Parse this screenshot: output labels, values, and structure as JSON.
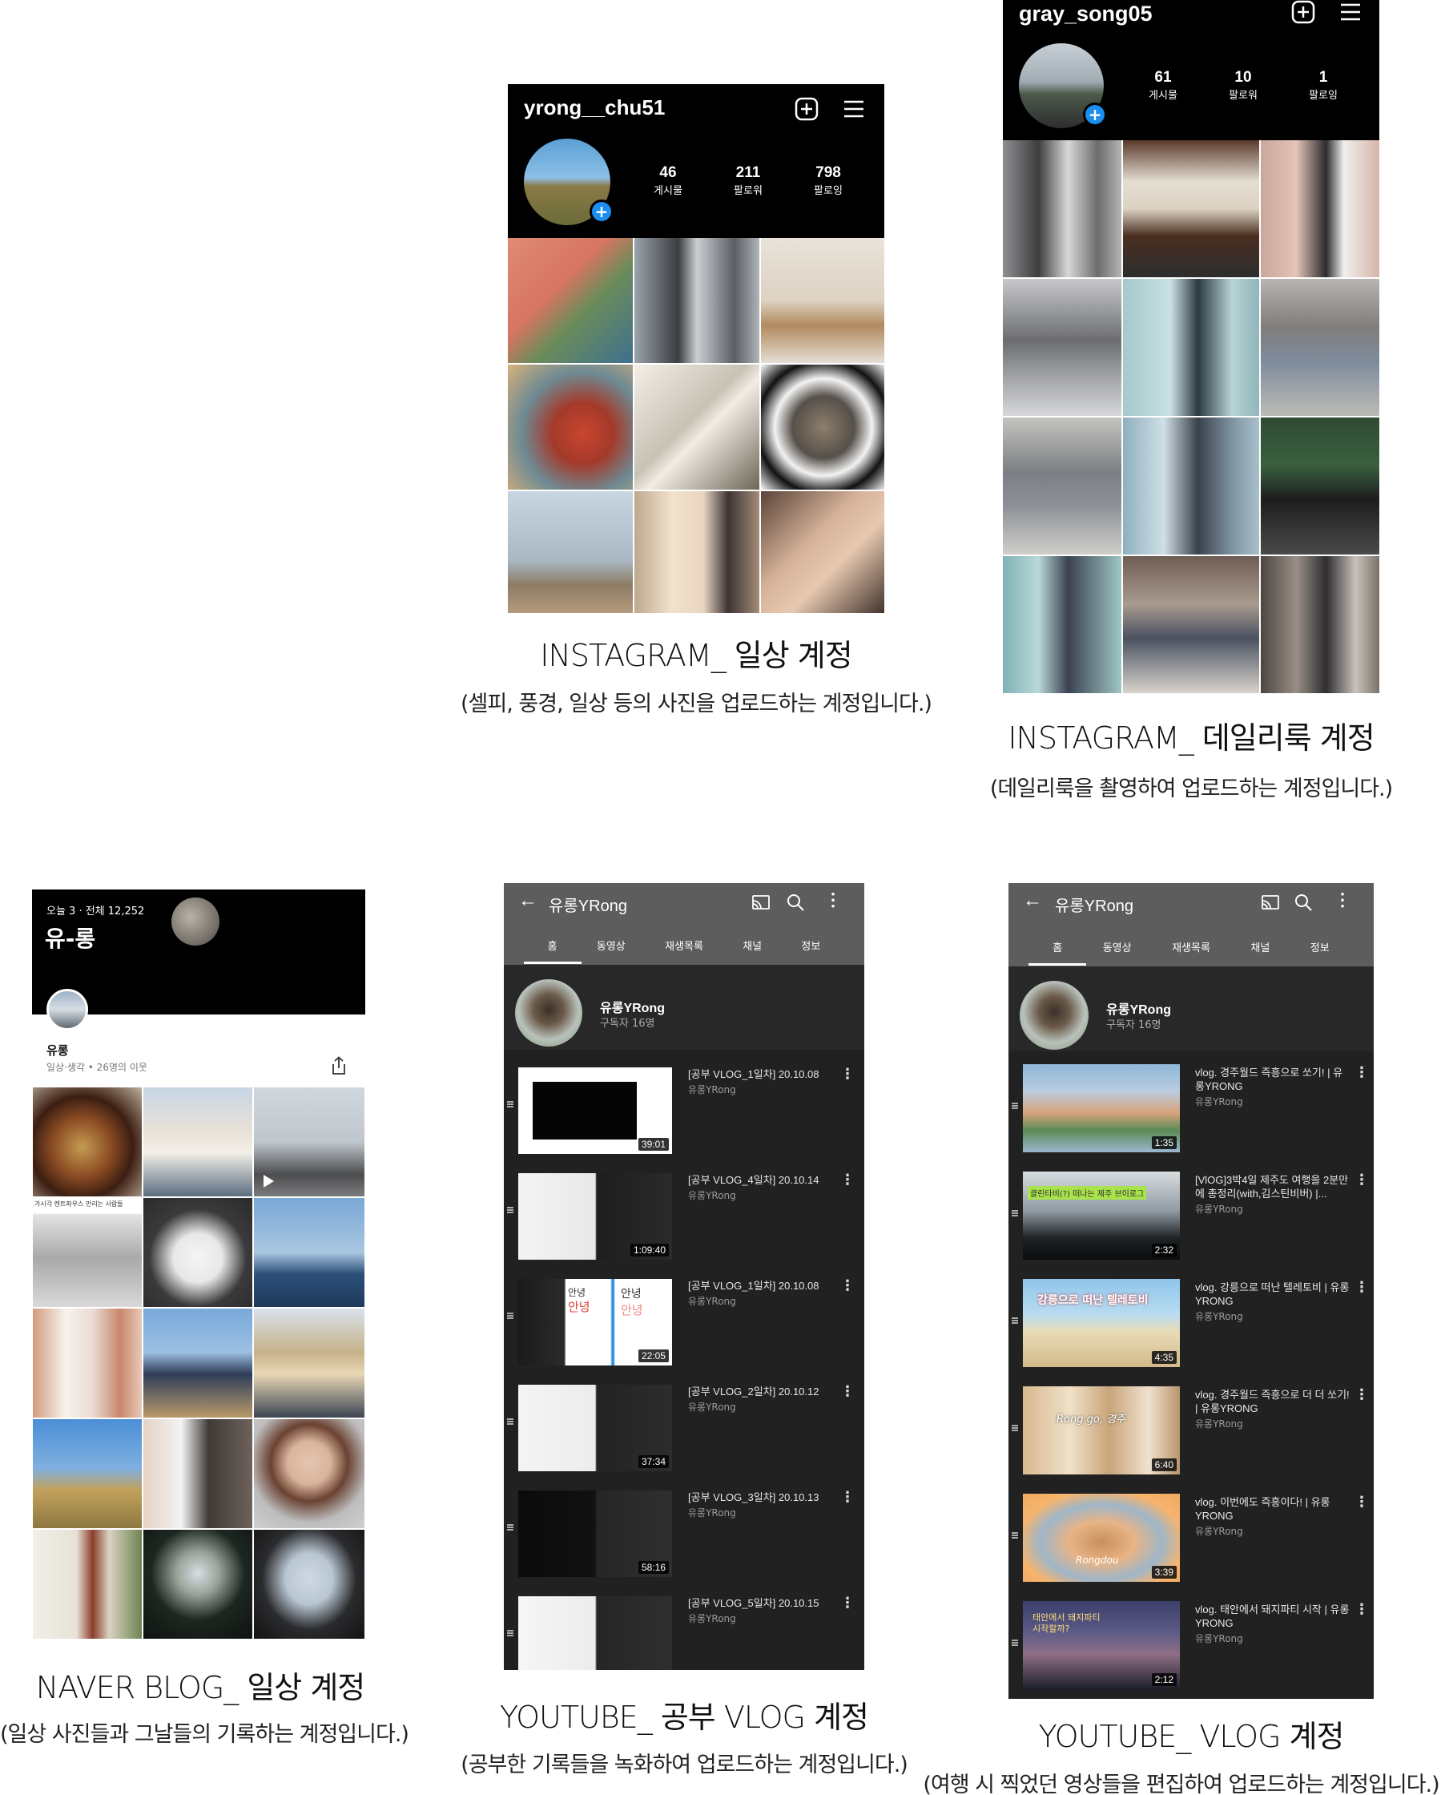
{
  "ig_daily": {
    "username": "yrong__chu51",
    "stats": [
      {
        "num": "46",
        "label": "게시물"
      },
      {
        "num": "211",
        "label": "팔로워"
      },
      {
        "num": "798",
        "label": "팔로잉"
      }
    ],
    "caption_title": "INSTAGRAM_ 일상 계정",
    "caption_sub": "(셀피, 풍경, 일상 등의 사진을 업로드하는 계정입니다.)"
  },
  "ig_look": {
    "username": "gray_song05",
    "stats": [
      {
        "num": "61",
        "label": "게시물"
      },
      {
        "num": "10",
        "label": "팔로워"
      },
      {
        "num": "1",
        "label": "팔로잉"
      }
    ],
    "caption_title": "INSTAGRAM_ 데일리룩 계정",
    "caption_sub": "(데일리룩을 촬영하여 업로드하는 계정입니다.)"
  },
  "naver": {
    "visitors": "오늘 3 · 전체 12,252",
    "blog_title": "유-롱",
    "nickname": "유롱",
    "meta": "일상·생각 • 26명의 이웃",
    "tile_caption": "가시각 렌트파우스 만리는 사람들",
    "caption_title": "NAVER BLOG_ 일상 계정",
    "caption_sub": "(일상 사진들과 그날들의 기록하는 계정입니다.)"
  },
  "yt_study": {
    "channel_title": "유롱YRong",
    "tabs": [
      "홈",
      "동영상",
      "재생목록",
      "채널",
      "정보"
    ],
    "channel_name": "유롱YRong",
    "subscribers": "구독자 16명",
    "videos": [
      {
        "title": "[공부 VLOG_1일차] 20.10.08",
        "channel": "유롱YRong",
        "duration": "39:01"
      },
      {
        "title": "[공부 VLOG_4일차] 20.10.14",
        "channel": "유롱YRong",
        "duration": "1:09:40"
      },
      {
        "title": "[공부 VLOG_1일차] 20.10.08",
        "channel": "유롱YRong",
        "duration": "22:05"
      },
      {
        "title": "[공부 VLOG_2일차] 20.10.12",
        "channel": "유롱YRong",
        "duration": "37:34"
      },
      {
        "title": "[공부 VLOG_3일차] 20.10.13",
        "channel": "유롱YRong",
        "duration": "58:16"
      },
      {
        "title": "[공부 VLOG_5일차] 20.10.15",
        "channel": "유롱YRong",
        "duration": ""
      }
    ],
    "thumb_text": {
      "annyeong": "안녕"
    },
    "caption_title": "YOUTUBE_ 공부 VLOG 계정",
    "caption_sub": "(공부한 기록들을 녹화하여 업로드하는 계정입니다.)"
  },
  "yt_vlog": {
    "channel_title": "유롱YRong",
    "tabs": [
      "홈",
      "동영상",
      "재생목록",
      "채널",
      "정보"
    ],
    "channel_name": "유롱YRong",
    "subscribers": "구독자 16명",
    "videos": [
      {
        "title": "vlog. 경주월드 즉흥으로 쏘기! | 유롱YRONG",
        "channel": "유롱YRong",
        "duration": "1:35"
      },
      {
        "title": "[VlOG]3박4일 제주도 여행을 2분만에 총정리(with,김스틴비버) |...",
        "channel": "유롱YRong",
        "duration": "2:32"
      },
      {
        "title": "vlog. 강릉으로 떠난 텔레토비 | 유롱YRONG",
        "channel": "유롱YRong",
        "duration": "4:35"
      },
      {
        "title": "vlog. 경주월드 즉흥으로 더 더 쏘기! | 유롱YRONG",
        "channel": "유롱YRong",
        "duration": "6:40"
      },
      {
        "title": "vlog. 이번에도 즉흥이다! | 유롱YRONG",
        "channel": "유롱YRong",
        "duration": "3:39"
      },
      {
        "title": "vlog. 태안에서 돼지파티 시작 | 유롱YRONG",
        "channel": "유롱YRong",
        "duration": "2:12"
      }
    ],
    "thumb_text": {
      "t2": "클린타비(?) 떠나는 제주 브이로그",
      "t3": "강릉으로 떠난 텔레토비",
      "t4": "Rong go, 경주",
      "t5": "Rongdou",
      "t6": "태안에서 돼지파티 시작할까?"
    },
    "caption_title": "YOUTUBE_ VLOG 계정",
    "caption_sub": "(여행 시 찍었던 영상들을 편집하여 업로드하는 계정입니다.)"
  },
  "colors": {
    "ig_header": "#000000",
    "ig_plus": "#1c8ef0",
    "yt_bg": "#212121",
    "yt_bar": "#5d5d5d"
  }
}
